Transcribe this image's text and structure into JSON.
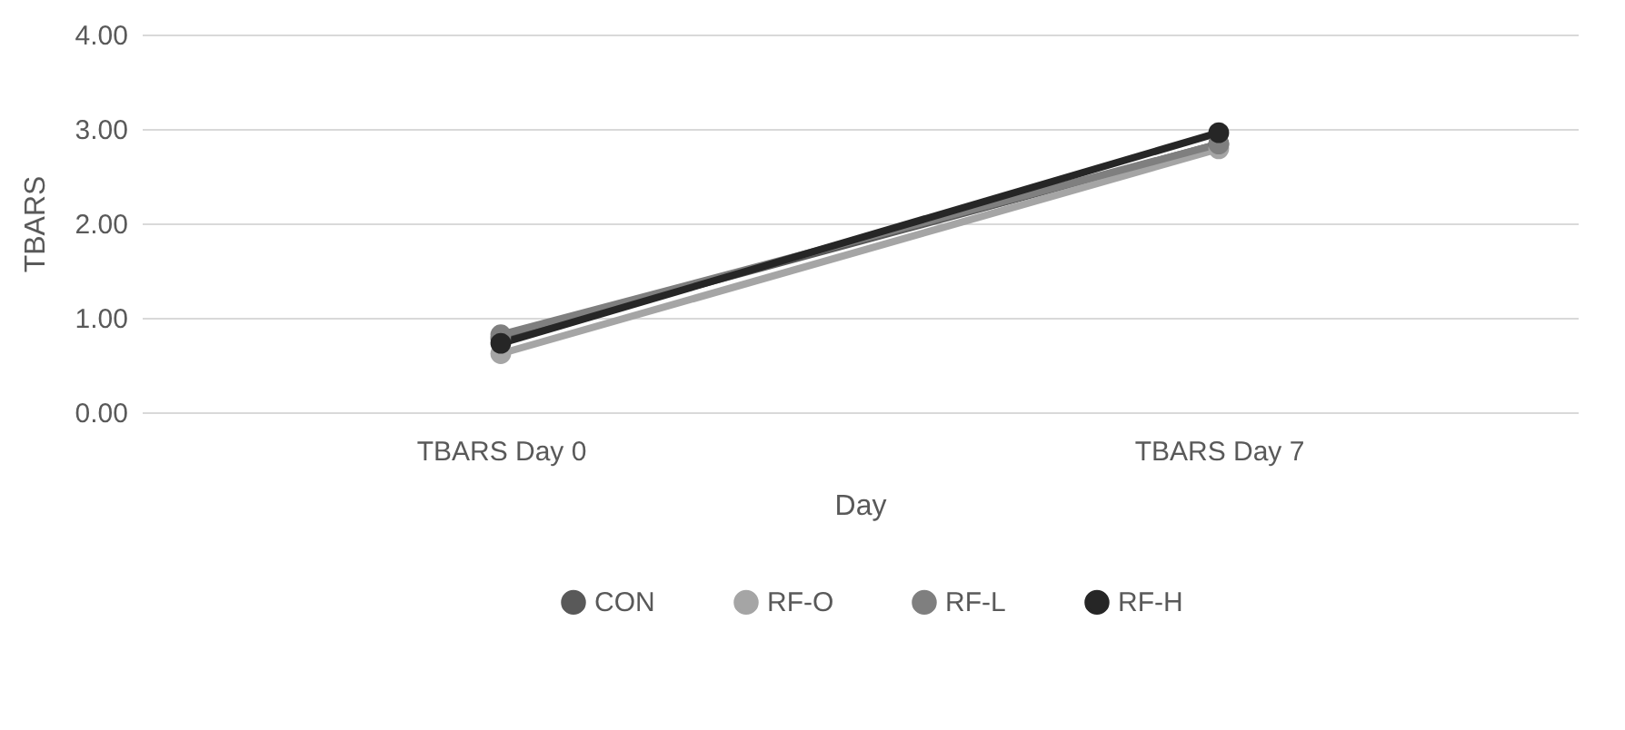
{
  "chart_data": {
    "type": "line",
    "xlabel": "Day",
    "ylabel": "TBARS",
    "categories": [
      "TBARS Day 0",
      "TBARS Day 7"
    ],
    "series": [
      {
        "name": "CON",
        "color": "#595959",
        "values": [
          0.78,
          2.84
        ]
      },
      {
        "name": "RF-O",
        "color": "#a5a5a5",
        "values": [
          0.62,
          2.79
        ]
      },
      {
        "name": "RF-L",
        "color": "#7f7f7f",
        "values": [
          0.82,
          2.84
        ]
      },
      {
        "name": "RF-H",
        "color": "#262626",
        "values": [
          0.73,
          2.96
        ]
      }
    ],
    "ylim": [
      0,
      4
    ],
    "yticks": [
      {
        "value": 0,
        "label": "0.00"
      },
      {
        "value": 1,
        "label": "1.00"
      },
      {
        "value": 2,
        "label": "2.00"
      },
      {
        "value": 3,
        "label": "3.00"
      },
      {
        "value": 4,
        "label": "4.00"
      }
    ],
    "grid": "y",
    "legend": "bottom",
    "marker": "circle",
    "line_style": "solid"
  }
}
